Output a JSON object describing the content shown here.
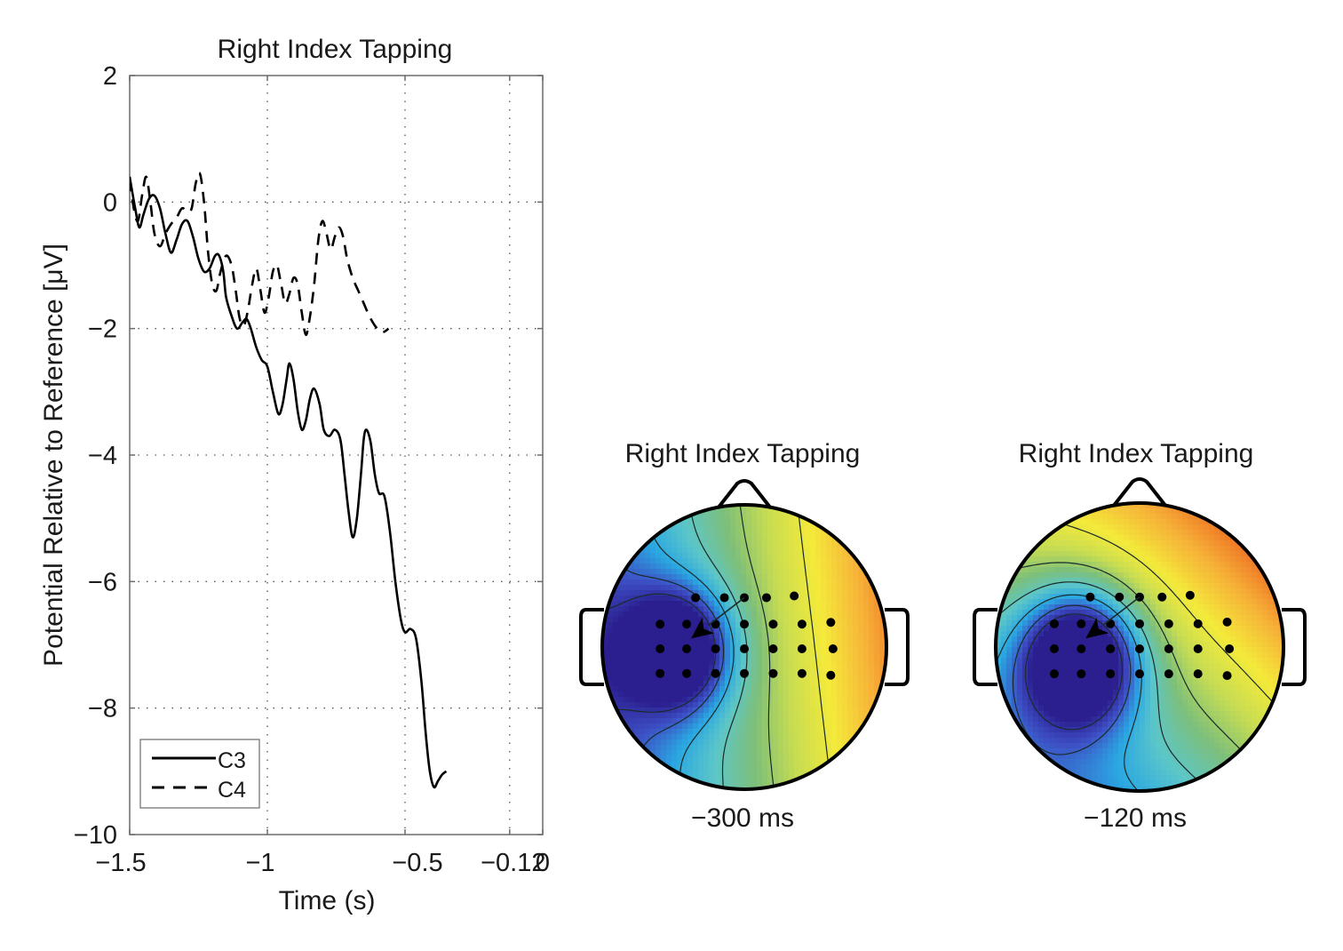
{
  "chart_data": [
    {
      "type": "line",
      "title": "Right Index Tapping",
      "xlabel": "Time (s)",
      "ylabel": "Potential Relative to Reference [μV]",
      "xlim": [
        -1.5,
        0
      ],
      "ylim": [
        -10,
        2
      ],
      "xticks": [
        -1.5,
        -1,
        -0.5,
        -0.12,
        0
      ],
      "xtick_labels": [
        "−1.5",
        "−1",
        "−0.5",
        "−0.12",
        "0"
      ],
      "yticks": [
        2,
        0,
        -2,
        -4,
        -6,
        -8,
        -10
      ],
      "ytick_labels": [
        "2",
        "0",
        "−2",
        "−4",
        "−6",
        "−8",
        "−10"
      ],
      "grid": true,
      "grid_style": "dotted",
      "legend_position": "bottom-left",
      "series": [
        {
          "name": "C3",
          "style": "solid",
          "points": [
            [
              -1.5,
              0.4
            ],
            [
              -1.48,
              -0.1
            ],
            [
              -1.465,
              -0.4
            ],
            [
              -1.45,
              -0.2
            ],
            [
              -1.43,
              0.05
            ],
            [
              -1.41,
              0.1
            ],
            [
              -1.39,
              -0.1
            ],
            [
              -1.37,
              -0.5
            ],
            [
              -1.35,
              -0.8
            ],
            [
              -1.33,
              -0.6
            ],
            [
              -1.31,
              -0.35
            ],
            [
              -1.29,
              -0.3
            ],
            [
              -1.27,
              -0.55
            ],
            [
              -1.25,
              -0.9
            ],
            [
              -1.23,
              -1.1
            ],
            [
              -1.21,
              -1.05
            ],
            [
              -1.19,
              -0.85
            ],
            [
              -1.175,
              -0.85
            ],
            [
              -1.16,
              -1.1
            ],
            [
              -1.15,
              -1.5
            ],
            [
              -1.13,
              -1.8
            ],
            [
              -1.11,
              -2.0
            ],
            [
              -1.09,
              -1.9
            ],
            [
              -1.075,
              -1.85
            ],
            [
              -1.06,
              -2.0
            ],
            [
              -1.04,
              -2.3
            ],
            [
              -1.02,
              -2.5
            ],
            [
              -1.0,
              -2.6
            ],
            [
              -0.98,
              -3.0
            ],
            [
              -0.96,
              -3.35
            ],
            [
              -0.945,
              -3.2
            ],
            [
              -0.93,
              -2.8
            ],
            [
              -0.92,
              -2.55
            ],
            [
              -0.905,
              -2.8
            ],
            [
              -0.89,
              -3.3
            ],
            [
              -0.875,
              -3.6
            ],
            [
              -0.86,
              -3.45
            ],
            [
              -0.845,
              -3.1
            ],
            [
              -0.83,
              -2.95
            ],
            [
              -0.81,
              -3.2
            ],
            [
              -0.795,
              -3.6
            ],
            [
              -0.775,
              -3.7
            ],
            [
              -0.755,
              -3.6
            ],
            [
              -0.735,
              -3.75
            ],
            [
              -0.72,
              -4.3
            ],
            [
              -0.705,
              -4.9
            ],
            [
              -0.69,
              -5.3
            ],
            [
              -0.675,
              -5.0
            ],
            [
              -0.66,
              -4.3
            ],
            [
              -0.65,
              -3.75
            ],
            [
              -0.64,
              -3.6
            ],
            [
              -0.625,
              -3.8
            ],
            [
              -0.61,
              -4.3
            ],
            [
              -0.595,
              -4.6
            ],
            [
              -0.575,
              -4.65
            ],
            [
              -0.555,
              -5.2
            ],
            [
              -0.535,
              -6.0
            ],
            [
              -0.515,
              -6.6
            ],
            [
              -0.5,
              -6.8
            ],
            [
              -0.48,
              -6.75
            ],
            [
              -0.46,
              -6.9
            ],
            [
              -0.44,
              -7.6
            ],
            [
              -0.425,
              -8.4
            ],
            [
              -0.41,
              -9.0
            ],
            [
              -0.395,
              -9.25
            ],
            [
              -0.38,
              -9.15
            ],
            [
              -0.365,
              -9.05
            ],
            [
              -0.35,
              -9.0
            ]
          ]
        },
        {
          "name": "C4",
          "style": "dashed",
          "points": [
            [
              -1.5,
              0.35
            ],
            [
              -1.485,
              -0.1
            ],
            [
              -1.47,
              -0.3
            ],
            [
              -1.455,
              0.1
            ],
            [
              -1.44,
              0.4
            ],
            [
              -1.425,
              0.0
            ],
            [
              -1.41,
              -0.5
            ],
            [
              -1.39,
              -0.7
            ],
            [
              -1.37,
              -0.5
            ],
            [
              -1.35,
              -0.35
            ],
            [
              -1.33,
              -0.25
            ],
            [
              -1.31,
              -0.1
            ],
            [
              -1.29,
              -0.15
            ],
            [
              -1.275,
              -0.1
            ],
            [
              -1.26,
              0.3
            ],
            [
              -1.245,
              0.45
            ],
            [
              -1.23,
              0.0
            ],
            [
              -1.215,
              -0.8
            ],
            [
              -1.2,
              -1.3
            ],
            [
              -1.185,
              -1.4
            ],
            [
              -1.17,
              -1.1
            ],
            [
              -1.15,
              -0.85
            ],
            [
              -1.13,
              -1.0
            ],
            [
              -1.115,
              -1.4
            ],
            [
              -1.1,
              -1.85
            ],
            [
              -1.085,
              -1.95
            ],
            [
              -1.07,
              -1.7
            ],
            [
              -1.055,
              -1.3
            ],
            [
              -1.04,
              -1.05
            ],
            [
              -1.025,
              -1.4
            ],
            [
              -1.01,
              -1.75
            ],
            [
              -0.995,
              -1.5
            ],
            [
              -0.98,
              -1.1
            ],
            [
              -0.965,
              -1.0
            ],
            [
              -0.95,
              -1.3
            ],
            [
              -0.935,
              -1.6
            ],
            [
              -0.92,
              -1.45
            ],
            [
              -0.905,
              -1.2
            ],
            [
              -0.89,
              -1.3
            ],
            [
              -0.875,
              -1.75
            ],
            [
              -0.86,
              -2.1
            ],
            [
              -0.845,
              -1.8
            ],
            [
              -0.83,
              -1.3
            ],
            [
              -0.815,
              -0.6
            ],
            [
              -0.8,
              -0.3
            ],
            [
              -0.785,
              -0.5
            ],
            [
              -0.77,
              -0.75
            ],
            [
              -0.755,
              -0.55
            ],
            [
              -0.74,
              -0.4
            ],
            [
              -0.725,
              -0.55
            ],
            [
              -0.71,
              -0.9
            ],
            [
              -0.69,
              -1.2
            ],
            [
              -0.67,
              -1.4
            ],
            [
              -0.65,
              -1.6
            ],
            [
              -0.63,
              -1.8
            ],
            [
              -0.61,
              -1.95
            ],
            [
              -0.59,
              -2.05
            ],
            [
              -0.575,
              -2.05
            ],
            [
              -0.56,
              -2.0
            ]
          ]
        }
      ]
    }
  ],
  "left_plot": {
    "title": "Right Index Tapping",
    "xlabel": "Time (s)",
    "ylabel": "Potential Relative to Reference [μV]",
    "legend": [
      {
        "label": "C3",
        "style": "solid"
      },
      {
        "label": "C4",
        "style": "dashed"
      }
    ]
  },
  "topomaps": [
    {
      "title": "Right Index Tapping",
      "time_label": "−300 ms",
      "time_ms": -300,
      "minimum_location": "left-central (around C3)",
      "colors": {
        "min": "#3b3fa8",
        "low": "#2eaee0",
        "mid": "#78c27a",
        "high": "#f2e63c",
        "max": "#ee6a22"
      }
    },
    {
      "title": "Right Index Tapping",
      "time_label": "−120 ms",
      "time_ms": -120,
      "minimum_location": "left-central (around C3)",
      "colors": {
        "min": "#34279a",
        "low": "#2eaee0",
        "mid": "#78c27a",
        "high": "#f2e63c",
        "max": "#eea03a"
      }
    }
  ],
  "colormap": [
    "#2b1f8f",
    "#3d4fc4",
    "#2aa7e2",
    "#5cc6c8",
    "#7dbf7a",
    "#c6dc52",
    "#f4ea3a",
    "#f6b238",
    "#ee6a22"
  ]
}
